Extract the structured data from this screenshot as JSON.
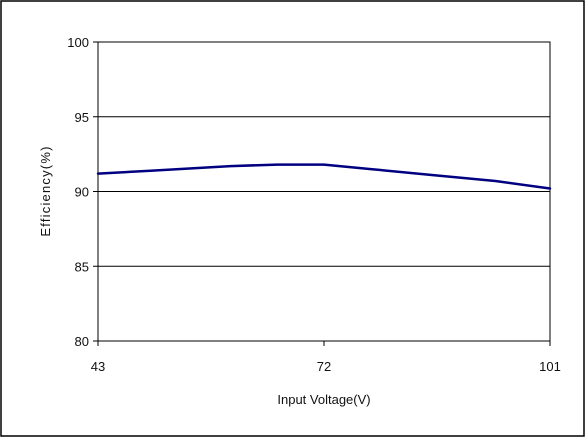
{
  "chart_data": {
    "type": "line",
    "title": "",
    "xlabel": "Input Voltage(V)",
    "ylabel": "Efficiency(%)",
    "xlim": [
      43,
      101
    ],
    "ylim": [
      80,
      100
    ],
    "x_ticks": [
      "43",
      "72",
      "101"
    ],
    "y_ticks": [
      "80",
      "85",
      "90",
      "95",
      "100"
    ],
    "grid": "horizontal",
    "legend": "none",
    "series": [
      {
        "color": "#000080",
        "x": [
          43,
          50,
          60,
          66,
          72,
          78,
          86,
          94,
          101
        ],
        "y": [
          91.2,
          91.4,
          91.7,
          91.8,
          91.8,
          91.5,
          91.1,
          90.7,
          90.2
        ]
      }
    ]
  }
}
